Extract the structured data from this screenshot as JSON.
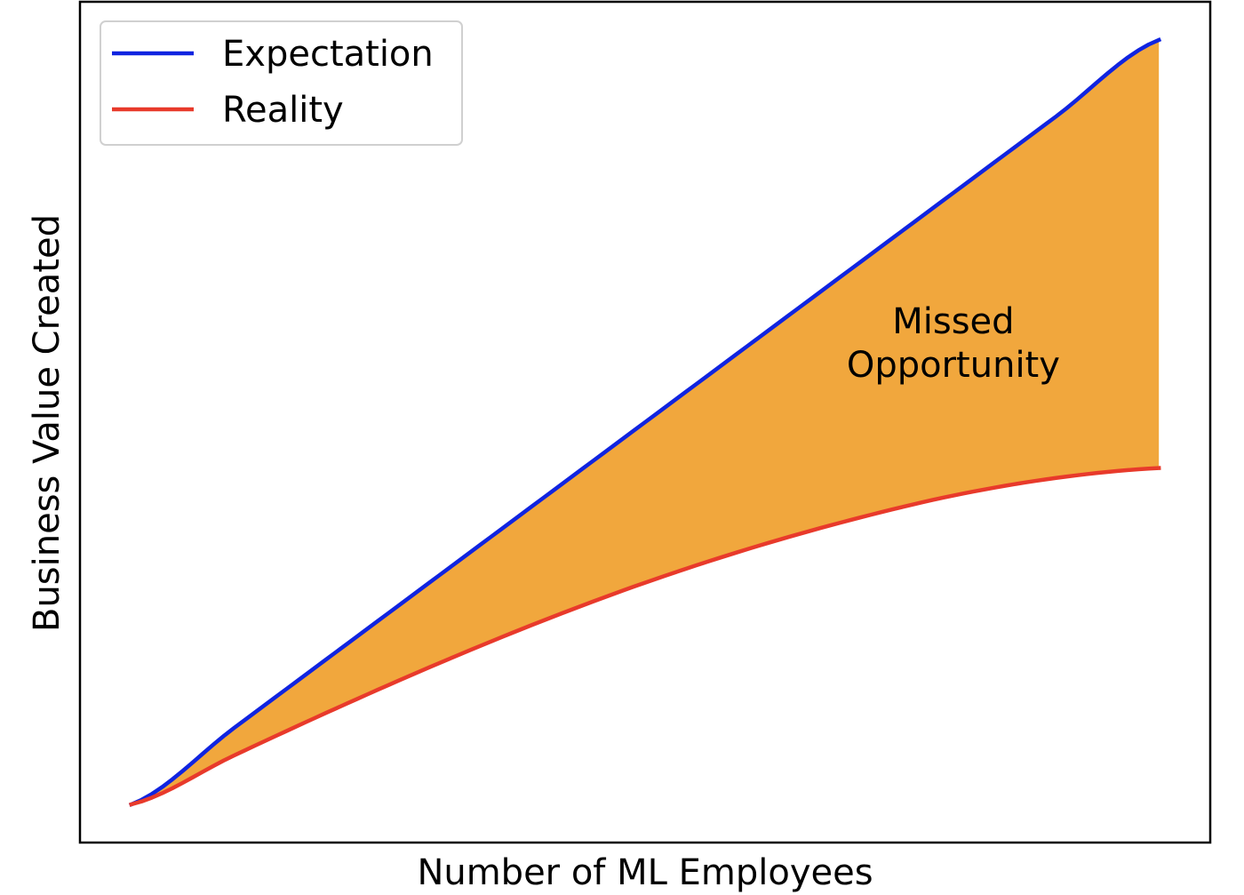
{
  "chart_data": {
    "type": "area",
    "xlabel": "Number of ML Employees",
    "ylabel": "Business Value Created",
    "xlim": [
      -0.05,
      1.05
    ],
    "ylim": [
      -0.05,
      1.05
    ],
    "x_ticks_shown": false,
    "y_ticks_shown": false,
    "grid": false,
    "legend_position": "upper left",
    "fill_between": {
      "upper": "Expectation",
      "lower": "Reality",
      "color": "#F1A73D"
    },
    "annotation": {
      "lines": [
        "Missed",
        "Opportunity"
      ],
      "x": 0.8,
      "y": 0.6
    },
    "series": [
      {
        "name": "Expectation",
        "color": "#1024E0",
        "x": [
          0,
          0.1,
          0.2,
          0.3,
          0.4,
          0.5,
          0.6,
          0.7,
          0.8,
          0.9,
          1.0
        ],
        "y": [
          0,
          0.1,
          0.2,
          0.3,
          0.4,
          0.5,
          0.6,
          0.7,
          0.8,
          0.9,
          1.0
        ]
      },
      {
        "name": "Reality",
        "color": "#E83A2B",
        "x": [
          0,
          0.1,
          0.2,
          0.3,
          0.4,
          0.5,
          0.6,
          0.7,
          0.8,
          0.9,
          1.0
        ],
        "y": [
          0,
          0.064,
          0.126,
          0.185,
          0.24,
          0.29,
          0.334,
          0.372,
          0.404,
          0.427,
          0.44
        ]
      }
    ]
  }
}
